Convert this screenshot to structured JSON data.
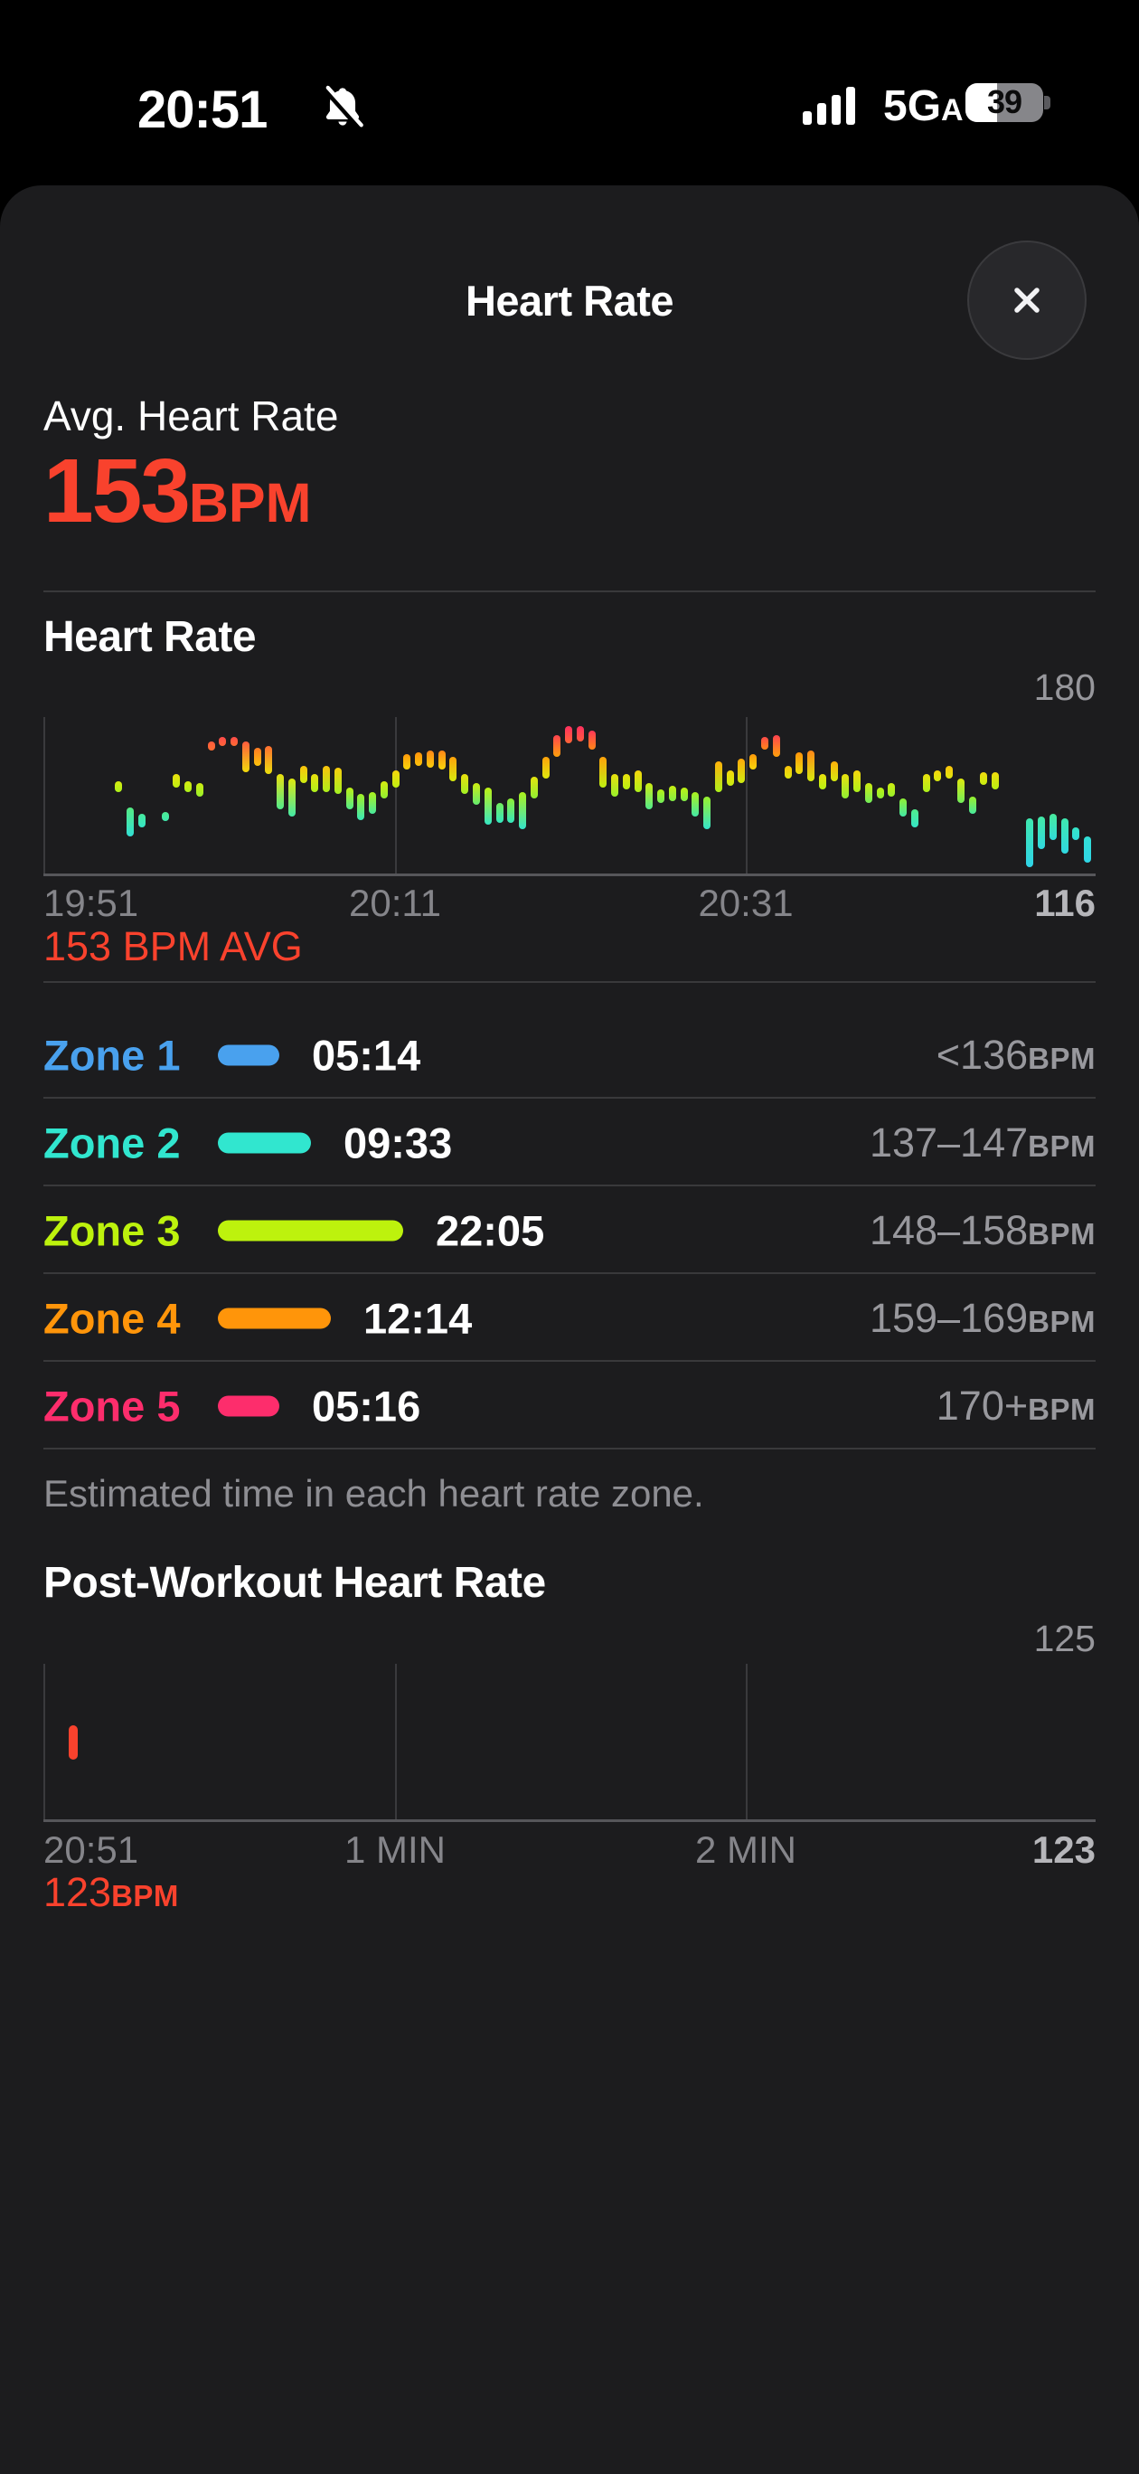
{
  "status_bar": {
    "time": "20:51",
    "bell": "notifications-silenced",
    "signal_bars": 4,
    "network": "5G",
    "network_band": "A",
    "battery_level": "39"
  },
  "header": {
    "title": "Heart Rate"
  },
  "summary": {
    "label": "Avg. Heart Rate",
    "value": "153",
    "unit": "BPM"
  },
  "hr_chart": {
    "title": "Heart Rate",
    "y_max_label": "180",
    "y_min_label": "116",
    "x_labels": [
      "19:51",
      "20:11",
      "20:31"
    ],
    "avg_label": "153 BPM AVG"
  },
  "zones": {
    "rows": [
      {
        "name": "Zone 1",
        "color": "#49a1ee",
        "duration": "05:14",
        "range": "<136"
      },
      {
        "name": "Zone 2",
        "color": "#31e6cf",
        "duration": "09:33",
        "range": "137–147"
      },
      {
        "name": "Zone 3",
        "color": "#bdf20d",
        "duration": "22:05",
        "range": "148–158"
      },
      {
        "name": "Zone 4",
        "color": "#ff950a",
        "duration": "12:14",
        "range": "159–169"
      },
      {
        "name": "Zone 5",
        "color": "#fd2d6c",
        "duration": "05:16",
        "range": "170+"
      }
    ],
    "unit": "BPM",
    "footnote": "Estimated time in each heart rate zone."
  },
  "post_chart": {
    "title": "Post-Workout Heart Rate",
    "y_max_label": "125",
    "y_min_label": "123",
    "x_labels": [
      "20:51",
      "1 MIN",
      "2 MIN"
    ],
    "value": "123",
    "value_unit": "BPM"
  },
  "accent_red": "#f9422d",
  "chart_data": [
    {
      "type": "bar",
      "title": "Heart Rate",
      "ylabel": "BPM",
      "ylim": [
        113,
        184
      ],
      "y_max": 180,
      "y_min": 116,
      "avg_bpm": 153,
      "x_start": "19:51",
      "x_ticks": [
        "19:51",
        "20:11",
        "20:31"
      ],
      "x_span_minutes": 60,
      "first_sample_minute": 4.3,
      "sample_pitch_min": 0.6577,
      "grid": "vertical",
      "legend": "none",
      "color_stops": [
        [
          116,
          "#2fd3e8"
        ],
        [
          128,
          "#30dcdc"
        ],
        [
          136,
          "#36e8c0"
        ],
        [
          143,
          "#55eb83"
        ],
        [
          147,
          "#8fef33"
        ],
        [
          151,
          "#b7f213"
        ],
        [
          156,
          "#dfe90e"
        ],
        [
          160,
          "#f7d60b"
        ],
        [
          164,
          "#ffb00a"
        ],
        [
          168,
          "#ff930a"
        ],
        [
          171,
          "#ff6e31"
        ],
        [
          174,
          "#ff5244"
        ],
        [
          177,
          "#ff3a55"
        ],
        [
          181,
          "#ff2d62"
        ]
      ],
      "bars": [
        [
          150,
          155
        ],
        [
          130,
          143
        ],
        [
          134,
          140
        ],
        null,
        [
          138,
          141
        ],
        [
          152,
          158
        ],
        [
          150,
          155
        ],
        [
          148,
          154
        ],
        [
          171,
          173
        ],
        [
          172,
          175
        ],
        [
          171,
          175
        ],
        [
          159,
          173
        ],
        [
          162,
          170
        ],
        [
          158,
          171
        ],
        [
          142,
          158
        ],
        [
          139,
          156
        ],
        [
          154,
          162
        ],
        [
          150,
          158
        ],
        [
          150,
          162
        ],
        [
          149,
          161
        ],
        [
          142,
          152
        ],
        [
          137,
          149
        ],
        [
          140,
          150
        ],
        [
          147,
          155
        ],
        [
          152,
          160
        ],
        [
          160,
          167
        ],
        [
          162,
          168
        ],
        [
          161,
          169
        ],
        [
          160,
          169
        ],
        [
          155,
          166
        ],
        [
          149,
          158
        ],
        [
          144,
          154
        ],
        [
          135,
          152
        ],
        [
          136,
          145
        ],
        [
          136,
          147
        ],
        [
          133,
          150
        ],
        [
          147,
          157
        ],
        [
          156,
          166
        ],
        [
          166,
          176
        ],
        [
          172,
          180
        ],
        [
          173,
          180
        ],
        [
          169,
          178
        ],
        [
          152,
          166
        ],
        [
          148,
          158
        ],
        [
          151,
          158
        ],
        [
          150,
          160
        ],
        [
          142,
          154
        ],
        [
          145,
          151
        ],
        [
          146,
          153
        ],
        [
          146,
          152
        ],
        [
          139,
          150
        ],
        [
          133,
          148
        ],
        [
          150,
          164
        ],
        [
          153,
          160
        ],
        [
          154,
          165
        ],
        [
          160,
          167
        ],
        [
          169,
          175
        ],
        [
          166,
          176
        ],
        [
          156,
          162
        ],
        [
          158,
          168
        ],
        [
          155,
          169
        ],
        [
          151,
          158
        ],
        [
          155,
          164
        ],
        [
          147,
          158
        ],
        [
          150,
          160
        ],
        [
          145,
          154
        ],
        [
          147,
          152
        ],
        [
          148,
          154
        ],
        [
          139,
          147
        ],
        [
          134,
          142
        ],
        [
          150,
          158
        ],
        [
          155,
          160
        ],
        [
          156,
          162
        ],
        [
          145,
          156
        ],
        [
          140,
          148
        ],
        [
          153,
          159
        ],
        [
          151,
          159
        ],
        null,
        null,
        [
          116,
          138
        ],
        [
          124,
          139
        ],
        [
          128,
          140
        ],
        [
          122,
          138
        ],
        [
          128,
          134
        ],
        [
          118,
          130
        ]
      ]
    },
    {
      "type": "bar",
      "title": "Post-Workout Heart Rate",
      "y_max": 125,
      "y_min": 123,
      "last_bpm": 123,
      "x_ticks": [
        "20:51",
        "1 MIN",
        "2 MIN"
      ],
      "bars": [
        [
          123,
          125
        ]
      ],
      "bar_color": "#f9422d",
      "grid": "vertical"
    }
  ]
}
